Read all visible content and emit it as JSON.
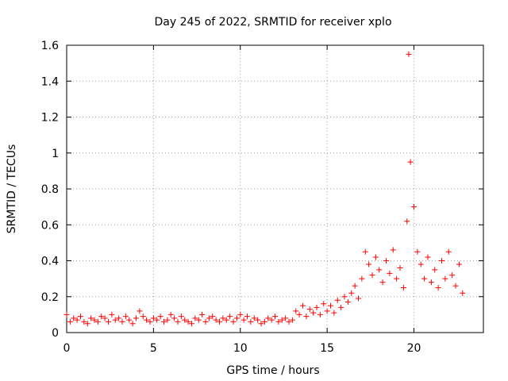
{
  "chart_data": {
    "type": "scatter",
    "title": "Day 245 of 2022, SRMTID for receiver xplo",
    "xlabel": "GPS time / hours",
    "ylabel": "SRMTID / TECUs",
    "xlim": [
      0,
      24
    ],
    "ylim": [
      0,
      1.6
    ],
    "xticks": [
      0,
      5,
      10,
      15,
      20
    ],
    "xtick_labels": [
      "0",
      "5",
      "10",
      "15",
      "20"
    ],
    "yticks": [
      0,
      0.2,
      0.4,
      0.6,
      0.8,
      1,
      1.2,
      1.4,
      1.6
    ],
    "ytick_labels": [
      "0",
      "0.2",
      "0.4",
      "0.6",
      "0.8",
      "1",
      "1.2",
      "1.4",
      "1.6"
    ],
    "grid": true,
    "color": "#ff0000",
    "marker": "plus",
    "series": [
      {
        "name": "SRMTID",
        "x": [
          0.0,
          0.2,
          0.4,
          0.6,
          0.8,
          1.0,
          1.2,
          1.4,
          1.6,
          1.8,
          2.0,
          2.2,
          2.4,
          2.6,
          2.8,
          3.0,
          3.2,
          3.4,
          3.6,
          3.8,
          4.0,
          4.2,
          4.4,
          4.6,
          4.8,
          5.0,
          5.2,
          5.4,
          5.6,
          5.8,
          6.0,
          6.2,
          6.4,
          6.6,
          6.8,
          7.0,
          7.2,
          7.4,
          7.6,
          7.8,
          8.0,
          8.2,
          8.4,
          8.6,
          8.8,
          9.0,
          9.2,
          9.4,
          9.6,
          9.8,
          10.0,
          10.2,
          10.4,
          10.6,
          10.8,
          11.0,
          11.2,
          11.4,
          11.6,
          11.8,
          12.0,
          12.2,
          12.4,
          12.6,
          12.8,
          13.0,
          13.2,
          13.4,
          13.6,
          13.8,
          14.0,
          14.2,
          14.4,
          14.6,
          14.8,
          15.0,
          15.2,
          15.4,
          15.6,
          15.8,
          16.0,
          16.2,
          16.4,
          16.6,
          16.8,
          17.0,
          17.2,
          17.4,
          17.6,
          17.8,
          18.0,
          18.2,
          18.4,
          18.6,
          18.8,
          19.0,
          19.2,
          19.4,
          19.6,
          19.7,
          19.8,
          20.0,
          20.2,
          20.4,
          20.6,
          20.8,
          21.0,
          21.2,
          21.4,
          21.6,
          21.8,
          22.0,
          22.2,
          22.4,
          22.6,
          22.8
        ],
        "y": [
          0.1,
          0.06,
          0.08,
          0.07,
          0.09,
          0.06,
          0.05,
          0.08,
          0.07,
          0.06,
          0.09,
          0.08,
          0.06,
          0.1,
          0.07,
          0.08,
          0.06,
          0.09,
          0.07,
          0.05,
          0.08,
          0.12,
          0.09,
          0.07,
          0.06,
          0.08,
          0.07,
          0.09,
          0.06,
          0.07,
          0.1,
          0.08,
          0.06,
          0.09,
          0.07,
          0.06,
          0.05,
          0.08,
          0.07,
          0.1,
          0.06,
          0.08,
          0.09,
          0.07,
          0.06,
          0.08,
          0.07,
          0.09,
          0.06,
          0.08,
          0.1,
          0.07,
          0.09,
          0.06,
          0.08,
          0.07,
          0.05,
          0.06,
          0.08,
          0.07,
          0.09,
          0.06,
          0.07,
          0.08,
          0.06,
          0.07,
          0.12,
          0.1,
          0.15,
          0.09,
          0.13,
          0.11,
          0.14,
          0.1,
          0.16,
          0.12,
          0.15,
          0.11,
          0.18,
          0.14,
          0.2,
          0.17,
          0.22,
          0.26,
          0.19,
          0.3,
          0.45,
          0.38,
          0.32,
          0.42,
          0.35,
          0.28,
          0.4,
          0.33,
          0.46,
          0.3,
          0.36,
          0.25,
          0.62,
          1.55,
          0.95,
          0.7,
          0.45,
          0.38,
          0.3,
          0.42,
          0.28,
          0.35,
          0.25,
          0.4,
          0.3,
          0.45,
          0.32,
          0.26,
          0.38,
          0.22
        ]
      }
    ]
  }
}
